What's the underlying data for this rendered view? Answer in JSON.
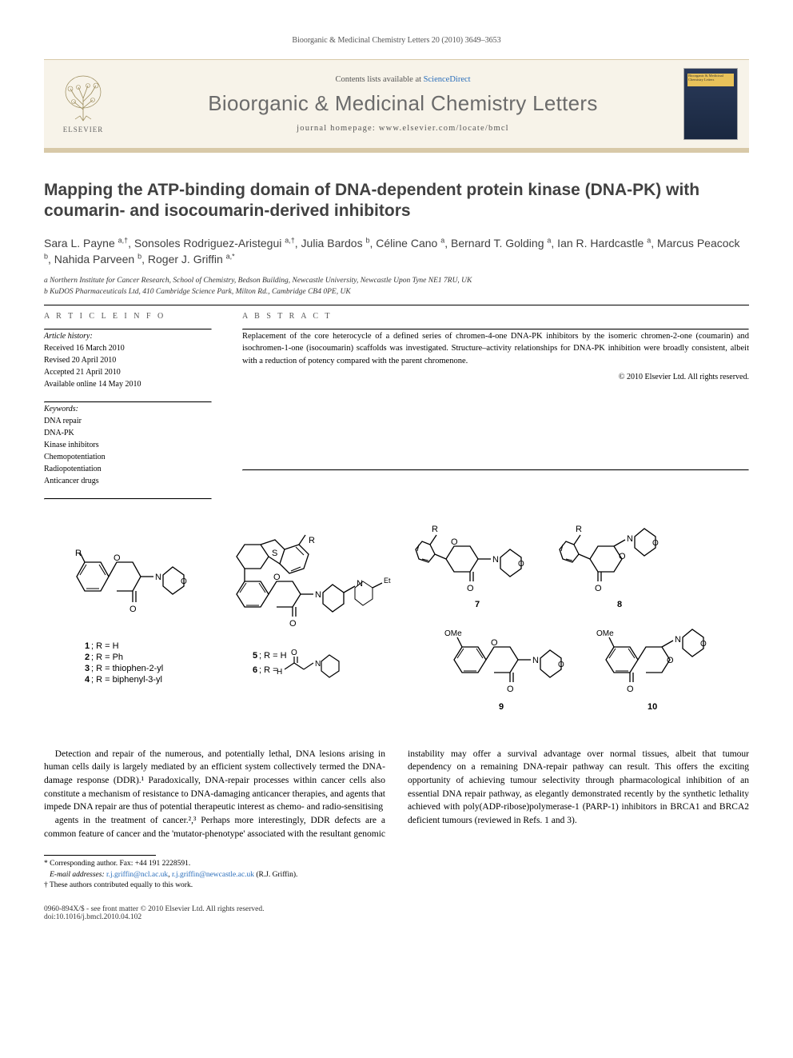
{
  "running_head": "Bioorganic & Medicinal Chemistry Letters 20 (2010) 3649–3653",
  "masthead": {
    "publisher": "ELSEVIER",
    "contents_prefix": "Contents lists available at ",
    "contents_link": "ScienceDirect",
    "journal": "Bioorganic & Medicinal Chemistry Letters",
    "homepage_prefix": "journal homepage: ",
    "homepage_url": "www.elsevier.com/locate/bmcl",
    "cover_label": "Bioorganic & Medicinal Chemistry Letters"
  },
  "title": "Mapping the ATP-binding domain of DNA-dependent protein kinase (DNA-PK) with coumarin- and isocoumarin-derived inhibitors",
  "authors_html": "Sara L. Payne <sup>a,†</sup>, Sonsoles Rodriguez-Aristegui <sup>a,†</sup>, Julia Bardos <sup>b</sup>, Céline Cano <sup>a</sup>, Bernard T. Golding <sup>a</sup>, Ian R. Hardcastle <sup>a</sup>, Marcus Peacock <sup>b</sup>, Nahida Parveen <sup>b</sup>, Roger J. Griffin <sup>a,*</sup>",
  "affiliations": [
    "a Northern Institute for Cancer Research, School of Chemistry, Bedson Building, Newcastle University, Newcastle Upon Tyne NE1 7RU, UK",
    "b KuDOS Pharmaceuticals Ltd, 410 Cambridge Science Park, Milton Rd., Cambridge CB4 0PE, UK"
  ],
  "info_heading": "A R T I C L E   I N F O",
  "abstract_heading": "A B S T R A C T",
  "history_label": "Article history:",
  "history": [
    "Received 16 March 2010",
    "Revised 20 April 2010",
    "Accepted 21 April 2010",
    "Available online 14 May 2010"
  ],
  "keywords_label": "Keywords:",
  "keywords": [
    "DNA repair",
    "DNA-PK",
    "Kinase inhibitors",
    "Chemopotentiation",
    "Radiopotentiation",
    "Anticancer drugs"
  ],
  "abstract": "Replacement of the core heterocycle of a defined series of chromen-4-one DNA-PK inhibitors by the isomeric chromen-2-one (coumarin) and isochromen-1-one (isocoumarin) scaffolds was investigated. Structure–activity relationships for DNA-PK inhibition were broadly consistent, albeit with a reduction of potency compared with the parent chromenone.",
  "abs_copyright": "© 2010 Elsevier Ltd. All rights reserved.",
  "figure": {
    "compound_labels_left": "1; R = H\n2; R = Ph\n3; R = thiophen-2-yl\n4; R = biphenyl-3-yl",
    "compound_labels_mid": "5; R = H\n6; R =",
    "compound_7": "7",
    "compound_8": "8",
    "compound_9": "9",
    "compound_10": "10",
    "r_group": "R",
    "OMe": "OMe",
    "Et": "Et"
  },
  "body": {
    "p1": "Detection and repair of the numerous, and potentially lethal, DNA lesions arising in human cells daily is largely mediated by an efficient system collectively termed the DNA-damage response (DDR).¹ Paradoxically, DNA-repair processes within cancer cells also constitute a mechanism of resistance to DNA-damaging anticancer therapies, and agents that impede DNA repair are thus of potential therapeutic interest as chemo- and radio-sensitising",
    "p2": "agents in the treatment of cancer.²,³ Perhaps more interestingly, DDR defects are a common feature of cancer and the 'mutator-phenotype' associated with the resultant genomic instability may offer a survival advantage over normal tissues, albeit that tumour dependency on a remaining DNA-repair pathway can result. This offers the exciting opportunity of achieving tumour selectivity through pharmacological inhibition of an essential DNA repair pathway, as elegantly demonstrated recently by the synthetic lethality achieved with poly(ADP-ribose)polymerase-1 (PARP-1) inhibitors in BRCA1 and BRCA2 deficient tumours (reviewed in Refs. 1 and 3)."
  },
  "footnotes": {
    "corr": "* Corresponding author. Fax: +44 191 2228591.",
    "email_label": "E-mail addresses: ",
    "email1": "r.j.griffin@ncl.ac.uk",
    "email_sep": ", ",
    "email2": "r.j.griffin@newcastle.ac.uk",
    "email_suffix": " (R.J. Griffin).",
    "equal": "† These authors contributed equally to this work."
  },
  "footer": {
    "left": "0960-894X/$ - see front matter © 2010 Elsevier Ltd. All rights reserved.",
    "doi": "doi:10.1016/j.bmcl.2010.04.102"
  },
  "colors": {
    "masthead_bg": "#f7f3e9",
    "masthead_border": "#d8c9a8",
    "link": "#2a6ebb",
    "heading_gray": "#414141"
  }
}
